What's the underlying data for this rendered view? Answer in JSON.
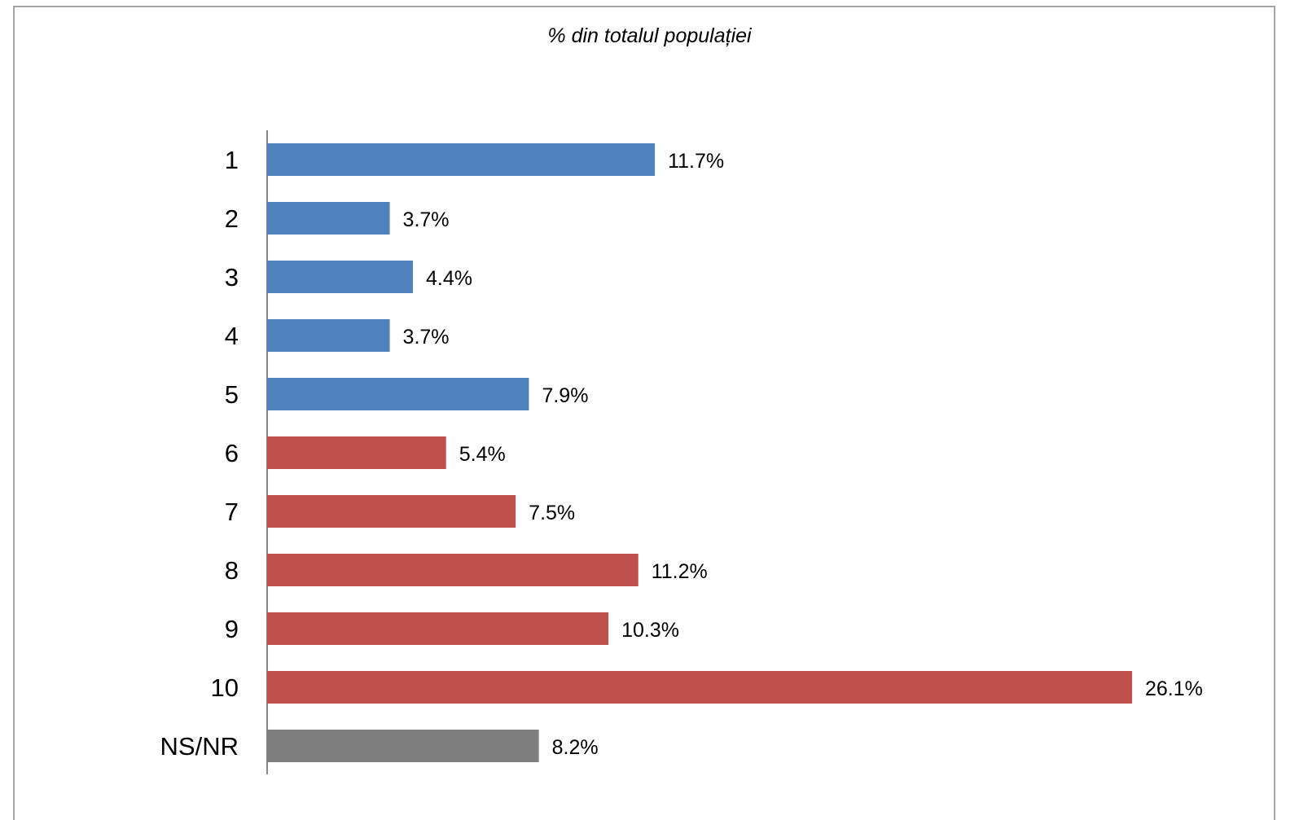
{
  "chart_data": {
    "type": "bar",
    "orientation": "horizontal",
    "title": "% din totalul populației",
    "xlabel": "",
    "ylabel": "",
    "categories": [
      "1",
      "2",
      "3",
      "4",
      "5",
      "6",
      "7",
      "8",
      "9",
      "10",
      "NS/NR"
    ],
    "values": [
      11.7,
      3.7,
      4.4,
      3.7,
      7.9,
      5.4,
      7.5,
      11.2,
      10.3,
      26.1,
      8.2
    ],
    "value_labels": [
      "11.7%",
      "3.7%",
      "4.4%",
      "3.7%",
      "7.9%",
      "5.4%",
      "7.5%",
      "11.2%",
      "10.3%",
      "26.1%",
      "8.2%"
    ],
    "bar_colors": [
      "#4f81bd",
      "#4f81bd",
      "#4f81bd",
      "#4f81bd",
      "#4f81bd",
      "#c0504d",
      "#c0504d",
      "#c0504d",
      "#c0504d",
      "#c0504d",
      "#7f7f7f"
    ],
    "xlim": [
      0,
      26.1
    ],
    "grid": false,
    "legend": "none"
  }
}
